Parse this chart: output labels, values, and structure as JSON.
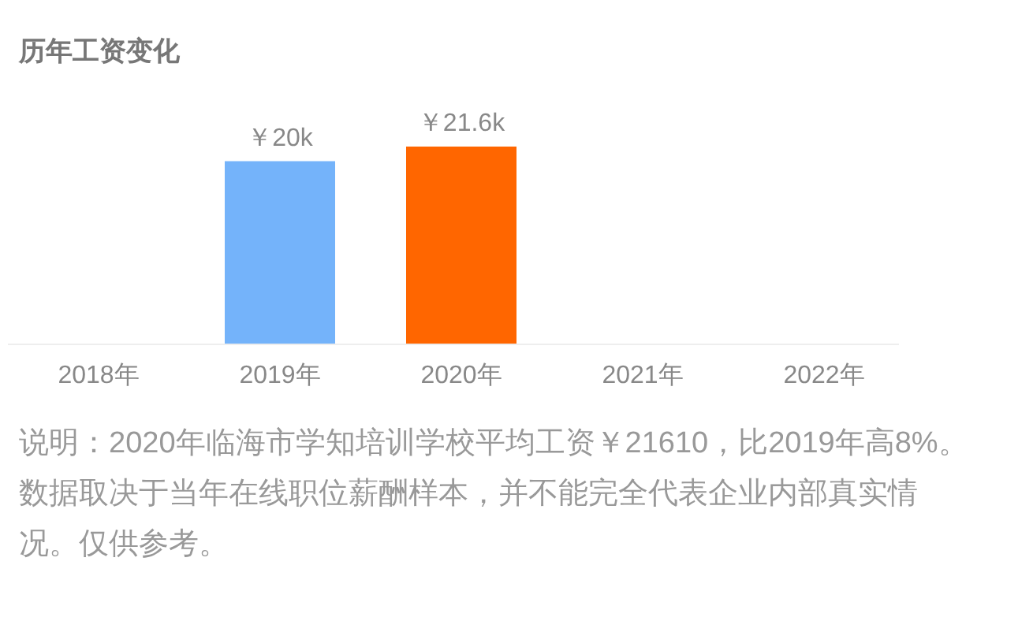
{
  "chart_data": {
    "type": "bar",
    "title": "历年工资变化",
    "categories": [
      "2018年",
      "2019年",
      "2020年",
      "2021年",
      "2022年"
    ],
    "values": [
      null,
      20,
      21.6,
      null,
      null
    ],
    "colors": [
      null,
      "#74b3fa",
      "#ff6600",
      null,
      null
    ],
    "value_labels": [
      null,
      "￥20k",
      "￥21.6k",
      null,
      null
    ],
    "annotations": [
      "说明：2020年临海市学知培训学校平均工资￥21610，比2019年高8%。数据取决于当年在线职位薪酬样本，并不能完全代表企业内部真实情况。仅供参考。"
    ]
  }
}
